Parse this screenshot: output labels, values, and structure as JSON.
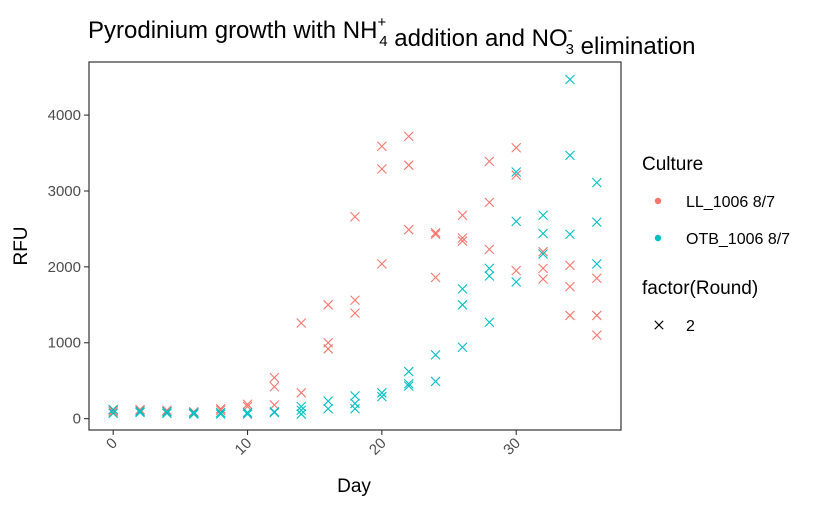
{
  "chart_data": {
    "type": "scatter",
    "title": {
      "parts": [
        {
          "text": "Pyrodinium growth with NH",
          "sub": "",
          "sup": ""
        },
        {
          "text": "",
          "sub": "4",
          "sup": "+"
        },
        {
          "text": " addition and NO",
          "sub": "",
          "sup": ""
        },
        {
          "text": "",
          "sub": "3",
          "sup": "-"
        },
        {
          "text": " elimination",
          "sub": "",
          "sup": ""
        }
      ]
    },
    "xlabel": "Day",
    "ylabel": "RFU",
    "xlim": [
      -1.8,
      37.8
    ],
    "ylim": [
      -150,
      4700
    ],
    "x_ticks": [
      0,
      10,
      20,
      30
    ],
    "x_tick_labels": [
      "0",
      "10",
      "20",
      "30"
    ],
    "y_ticks": [
      0,
      1000,
      2000,
      3000,
      4000
    ],
    "y_tick_labels": [
      "0",
      "1000",
      "2000",
      "3000",
      "4000"
    ],
    "grid": false,
    "marker": "x",
    "legend": {
      "placement": "right",
      "color_title": "Culture",
      "shape_title": "factor(Round)",
      "shape_label": "2"
    },
    "series": [
      {
        "name": "LL_1006 8/7",
        "color": "#F8766D",
        "points": [
          [
            0,
            110
          ],
          [
            0,
            90
          ],
          [
            2,
            120
          ],
          [
            2,
            100
          ],
          [
            4,
            110
          ],
          [
            4,
            90
          ],
          [
            6,
            90
          ],
          [
            6,
            70
          ],
          [
            8,
            130
          ],
          [
            8,
            110
          ],
          [
            10,
            190
          ],
          [
            10,
            160
          ],
          [
            12,
            540
          ],
          [
            12,
            420
          ],
          [
            12,
            180
          ],
          [
            14,
            1260
          ],
          [
            14,
            340
          ],
          [
            16,
            1500
          ],
          [
            16,
            1000
          ],
          [
            16,
            920
          ],
          [
            18,
            2660
          ],
          [
            18,
            1560
          ],
          [
            18,
            1390
          ],
          [
            20,
            3590
          ],
          [
            20,
            3290
          ],
          [
            20,
            2040
          ],
          [
            22,
            3720
          ],
          [
            22,
            3340
          ],
          [
            22,
            2490
          ],
          [
            24,
            2450
          ],
          [
            24,
            2430
          ],
          [
            24,
            1860
          ],
          [
            26,
            2680
          ],
          [
            26,
            2380
          ],
          [
            26,
            2340
          ],
          [
            28,
            3390
          ],
          [
            28,
            2850
          ],
          [
            28,
            2230
          ],
          [
            30,
            3570
          ],
          [
            30,
            3210
          ],
          [
            30,
            1950
          ],
          [
            32,
            2200
          ],
          [
            32,
            1980
          ],
          [
            32,
            1840
          ],
          [
            34,
            2020
          ],
          [
            34,
            1740
          ],
          [
            34,
            1360
          ],
          [
            36,
            1850
          ],
          [
            36,
            1360
          ],
          [
            36,
            1100
          ]
        ]
      },
      {
        "name": "OTB_1006 8/7",
        "color": "#00BFC4",
        "points": [
          [
            0,
            120
          ],
          [
            0,
            70
          ],
          [
            2,
            100
          ],
          [
            2,
            80
          ],
          [
            4,
            90
          ],
          [
            4,
            70
          ],
          [
            6,
            60
          ],
          [
            6,
            80
          ],
          [
            8,
            80
          ],
          [
            8,
            60
          ],
          [
            10,
            80
          ],
          [
            10,
            60
          ],
          [
            12,
            90
          ],
          [
            12,
            80
          ],
          [
            14,
            160
          ],
          [
            14,
            110
          ],
          [
            14,
            60
          ],
          [
            16,
            230
          ],
          [
            16,
            130
          ],
          [
            18,
            300
          ],
          [
            18,
            200
          ],
          [
            18,
            130
          ],
          [
            20,
            340
          ],
          [
            20,
            290
          ],
          [
            22,
            620
          ],
          [
            22,
            460
          ],
          [
            22,
            430
          ],
          [
            24,
            840
          ],
          [
            24,
            490
          ],
          [
            26,
            1710
          ],
          [
            26,
            1500
          ],
          [
            26,
            940
          ],
          [
            28,
            1980
          ],
          [
            28,
            1880
          ],
          [
            28,
            1270
          ],
          [
            30,
            3250
          ],
          [
            30,
            2600
          ],
          [
            30,
            1800
          ],
          [
            32,
            2680
          ],
          [
            32,
            2440
          ],
          [
            32,
            2170
          ],
          [
            34,
            4470
          ],
          [
            34,
            3470
          ],
          [
            34,
            2430
          ],
          [
            36,
            3110
          ],
          [
            36,
            2590
          ],
          [
            36,
            2040
          ]
        ]
      }
    ]
  }
}
